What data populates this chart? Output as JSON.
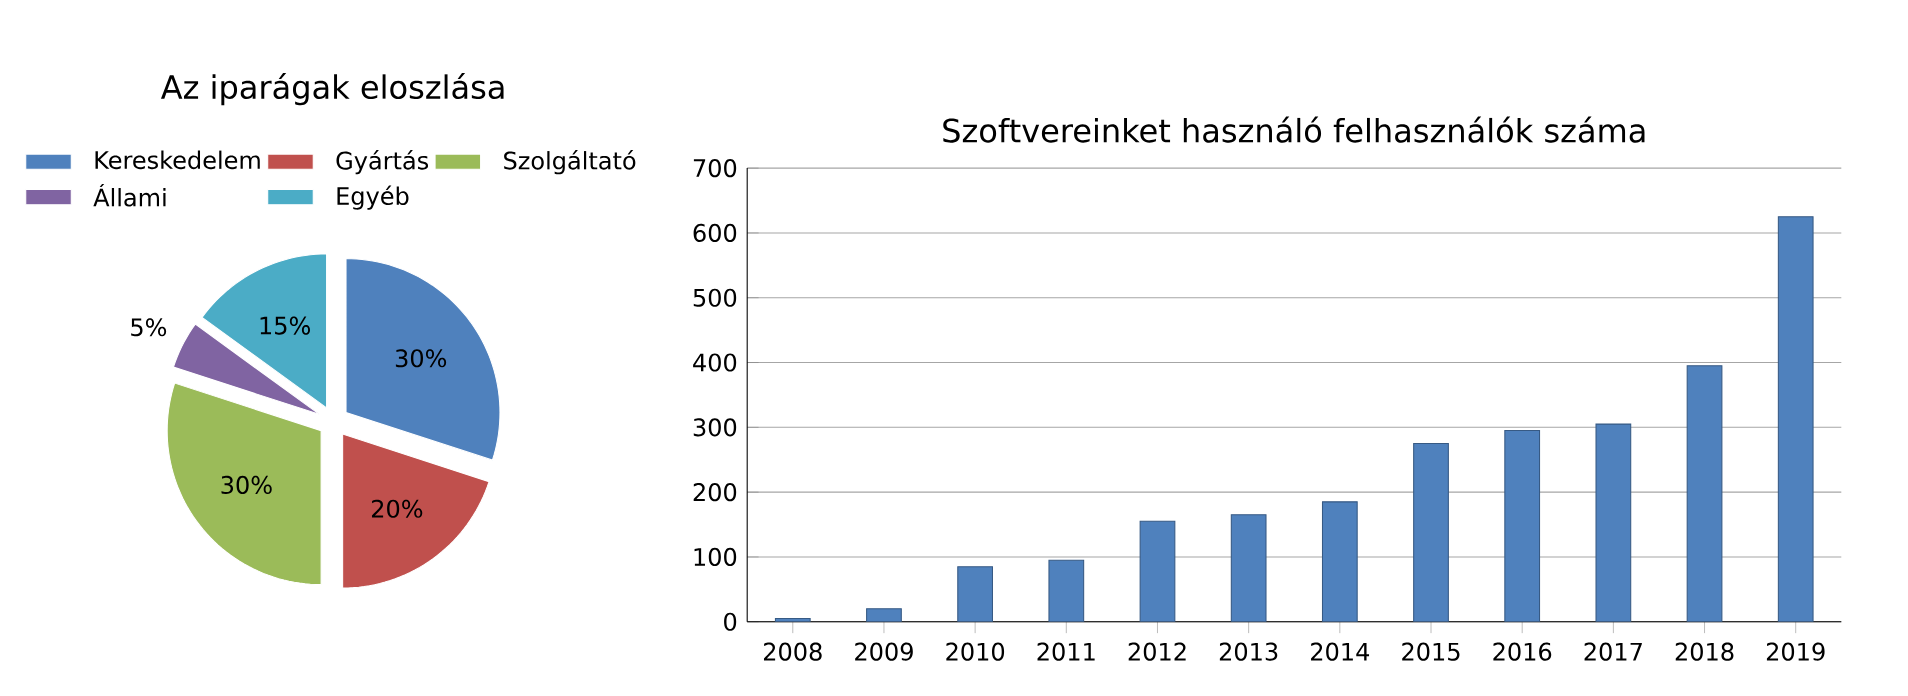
{
  "chart_data": [
    {
      "type": "pie",
      "title": "Az iparágak eloszlása",
      "categories": [
        "Kereskedelem",
        "Gyártás",
        "Szolgáltató",
        "Állami",
        "Egyéb"
      ],
      "values": [
        30,
        20,
        30,
        5,
        15
      ],
      "colors": [
        "#4f81bd",
        "#c0504d",
        "#9bbb59",
        "#8064a2",
        "#4bacc6"
      ],
      "value_labels": [
        "30%",
        "20%",
        "30%",
        "5%",
        "15%"
      ],
      "legend": "top"
    },
    {
      "type": "bar",
      "title": "Szoftvereinket használó felhasználók száma",
      "categories": [
        "2008",
        "2009",
        "2010",
        "2011",
        "2012",
        "2013",
        "2014",
        "2015",
        "2016",
        "2017",
        "2018",
        "2019"
      ],
      "values": [
        5,
        20,
        85,
        95,
        155,
        165,
        185,
        275,
        295,
        305,
        395,
        625
      ],
      "color": "#4f81bd",
      "ylim": [
        0,
        700
      ],
      "yticks": [
        0,
        100,
        200,
        300,
        400,
        500,
        600,
        700
      ],
      "grid": "y"
    }
  ]
}
